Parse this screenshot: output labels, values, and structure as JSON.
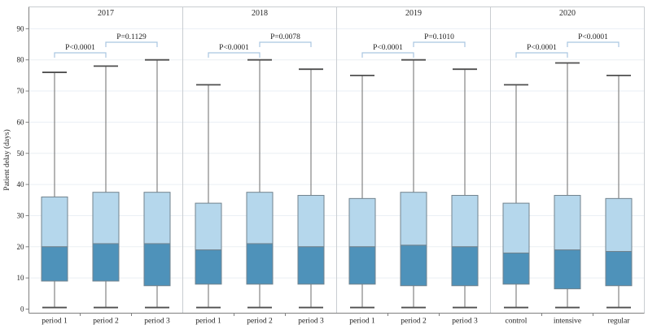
{
  "chart_data": {
    "type": "box",
    "title": "",
    "ylabel": "Patient delay (days)",
    "xlabel": "",
    "ylim": [
      0,
      97
    ],
    "yticks": [
      0,
      10,
      20,
      30,
      40,
      50,
      60,
      70,
      80,
      90
    ],
    "grid": true,
    "legend": "none",
    "colors": {
      "box_upper_fill": "#b5d7ec",
      "box_lower_fill": "#4e92ba",
      "box_border": "#72838e",
      "whisker_line": "#6b6b6b",
      "whisker_cap": "#4f4f4f",
      "bracket": "#a9c6e1",
      "gridline": "#eaeff4",
      "frame_light": "#c9cdd1",
      "axis": "#808080",
      "text": "#1f1f1f"
    },
    "panels": [
      {
        "year": "2017",
        "groups": [
          {
            "label": "period 1",
            "whisker_low": 0.5,
            "q1": 9,
            "median": 20,
            "q3": 36,
            "whisker_high": 76
          },
          {
            "label": "period 2",
            "whisker_low": 0.5,
            "q1": 9,
            "median": 21,
            "q3": 37.5,
            "whisker_high": 78
          },
          {
            "label": "period 3",
            "whisker_low": 0.5,
            "q1": 7.5,
            "median": 21,
            "q3": 37.5,
            "whisker_high": 80
          }
        ],
        "comparisons": [
          {
            "from": 0,
            "to": 1,
            "label": "P<0.0001"
          },
          {
            "from": 1,
            "to": 2,
            "label": "P=0.1129"
          }
        ]
      },
      {
        "year": "2018",
        "groups": [
          {
            "label": "period 1",
            "whisker_low": 0.5,
            "q1": 8,
            "median": 19,
            "q3": 34,
            "whisker_high": 72
          },
          {
            "label": "period 2",
            "whisker_low": 0.5,
            "q1": 8,
            "median": 21,
            "q3": 37.5,
            "whisker_high": 80
          },
          {
            "label": "period 3",
            "whisker_low": 0.5,
            "q1": 8,
            "median": 20,
            "q3": 36.5,
            "whisker_high": 77
          }
        ],
        "comparisons": [
          {
            "from": 0,
            "to": 1,
            "label": "P<0.0001"
          },
          {
            "from": 1,
            "to": 2,
            "label": "P=0.0078"
          }
        ]
      },
      {
        "year": "2019",
        "groups": [
          {
            "label": "period 1",
            "whisker_low": 0.5,
            "q1": 8,
            "median": 20,
            "q3": 35.5,
            "whisker_high": 75
          },
          {
            "label": "period 2",
            "whisker_low": 0.5,
            "q1": 7.5,
            "median": 20.5,
            "q3": 37.5,
            "whisker_high": 80
          },
          {
            "label": "period 3",
            "whisker_low": 0.5,
            "q1": 7.5,
            "median": 20,
            "q3": 36.5,
            "whisker_high": 77
          }
        ],
        "comparisons": [
          {
            "from": 0,
            "to": 1,
            "label": "P<0.0001"
          },
          {
            "from": 1,
            "to": 2,
            "label": "P=0.1010"
          }
        ]
      },
      {
        "year": "2020",
        "groups": [
          {
            "label": "control",
            "whisker_low": 0.5,
            "q1": 8,
            "median": 18,
            "q3": 34,
            "whisker_high": 72
          },
          {
            "label": "intensive",
            "whisker_low": 0.5,
            "q1": 6.5,
            "median": 19,
            "q3": 36.5,
            "whisker_high": 79
          },
          {
            "label": "regular",
            "whisker_low": 0.5,
            "q1": 7.5,
            "median": 18.5,
            "q3": 35.5,
            "whisker_high": 75
          }
        ],
        "comparisons": [
          {
            "from": 0,
            "to": 1,
            "label": "P<0.0001"
          },
          {
            "from": 1,
            "to": 2,
            "label": "P<0.0001"
          }
        ]
      }
    ]
  }
}
